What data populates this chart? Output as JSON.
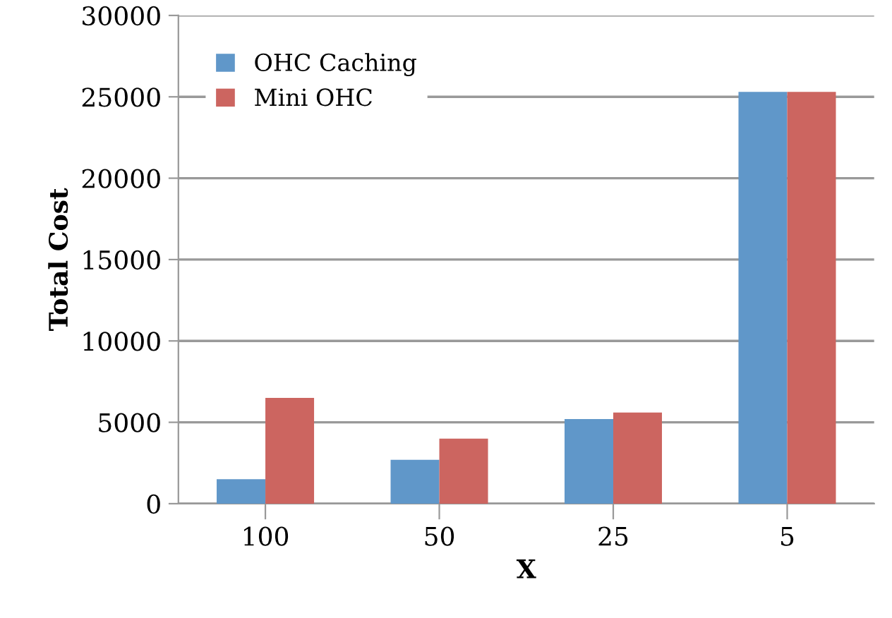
{
  "chart_data": {
    "type": "bar",
    "xlabel": "X",
    "ylabel": "Total Cost",
    "categories": [
      "100",
      "50",
      "25",
      "5"
    ],
    "series": [
      {
        "name": "OHC Caching",
        "color": "#6097c9",
        "values": [
          1500,
          2700,
          5200,
          25300
        ]
      },
      {
        "name": "Mini OHC",
        "color": "#cc6560",
        "values": [
          6500,
          4000,
          5600,
          25300
        ]
      }
    ],
    "ylim": [
      0,
      30000
    ],
    "yticks": [
      0,
      5000,
      10000,
      15000,
      20000,
      25000,
      30000
    ],
    "grid": "y",
    "legend": "top left"
  }
}
